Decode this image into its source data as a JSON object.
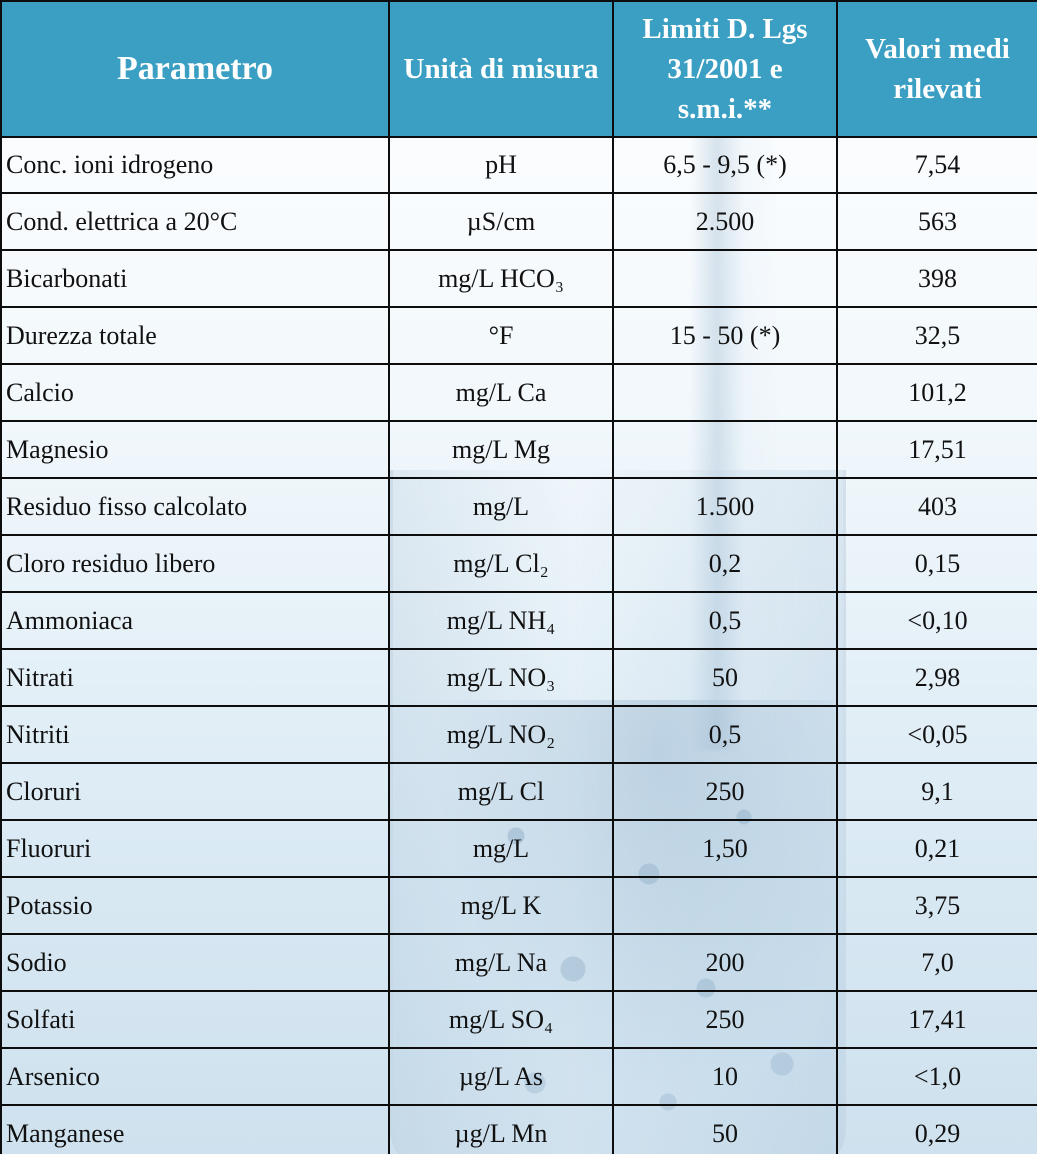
{
  "table": {
    "headers": [
      "Parametro",
      "Unità di misura",
      "Limiti D. Lgs 31/2001 e s.m.i.**",
      "Valori medi rilevati"
    ],
    "rows": [
      {
        "param": "Conc. ioni idrogeno",
        "unit": "pH",
        "limit": "6,5 - 9,5 (*)",
        "value": "7,54"
      },
      {
        "param": "Cond. elettrica a 20°C",
        "unit": "µS/cm",
        "limit": "2.500",
        "value": "563"
      },
      {
        "param": "Bicarbonati",
        "unit": "mg/L HCO₃",
        "limit": "",
        "value": "398"
      },
      {
        "param": "Durezza totale",
        "unit": "°F",
        "limit": "15 - 50 (*)",
        "value": "32,5"
      },
      {
        "param": "Calcio",
        "unit": "mg/L Ca",
        "limit": "",
        "value": "101,2"
      },
      {
        "param": "Magnesio",
        "unit": "mg/L Mg",
        "limit": "",
        "value": "17,51"
      },
      {
        "param": "Residuo fisso calcolato",
        "unit": "mg/L",
        "limit": "1.500",
        "value": "403"
      },
      {
        "param": "Cloro residuo libero",
        "unit": "mg/L Cl₂",
        "limit": "0,2",
        "value": "0,15"
      },
      {
        "param": "Ammoniaca",
        "unit": "mg/L NH₄",
        "limit": "0,5",
        "value": "<0,10"
      },
      {
        "param": "Nitrati",
        "unit": "mg/L NO₃",
        "limit": "50",
        "value": "2,98"
      },
      {
        "param": "Nitriti",
        "unit": "mg/L NO₂",
        "limit": "0,5",
        "value": "<0,05"
      },
      {
        "param": "Cloruri",
        "unit": "mg/L Cl",
        "limit": "250",
        "value": "9,1"
      },
      {
        "param": "Fluoruri",
        "unit": "mg/L",
        "limit": "1,50",
        "value": "0,21"
      },
      {
        "param": "Potassio",
        "unit": "mg/L K",
        "limit": "",
        "value": "3,75"
      },
      {
        "param": "Sodio",
        "unit": "mg/L Na",
        "limit": "200",
        "value": "7,0"
      },
      {
        "param": "Solfati",
        "unit": "mg/L SO₄",
        "limit": "250",
        "value": "17,41"
      },
      {
        "param": "Arsenico",
        "unit": "µg/L As",
        "limit": "10",
        "value": "<1,0"
      },
      {
        "param": "Manganese",
        "unit": "µg/L Mn",
        "limit": "50",
        "value": "0,29"
      }
    ]
  },
  "colors": {
    "header_bg": "#3a9fc2",
    "header_text": "#ffffff",
    "border": "#0d0d0d"
  }
}
